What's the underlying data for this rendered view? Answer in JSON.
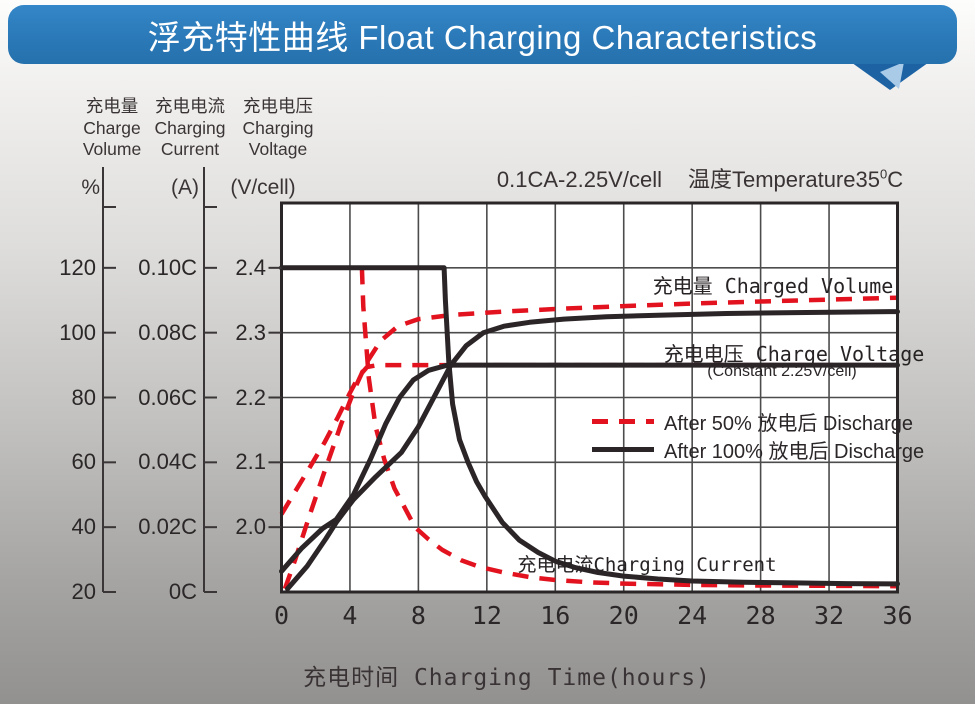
{
  "header": {
    "title": "浮充特性曲线 Float Charging Characteristics"
  },
  "axis_headers": [
    {
      "zh": "充电量",
      "en_line1": "Charge",
      "en_line2": "Volume",
      "unit": "%"
    },
    {
      "zh": "充电电流",
      "en_line1": "Charging",
      "en_line2": "Current",
      "unit": "(A)"
    },
    {
      "zh": "充电电压",
      "en_line1": "Charging",
      "en_line2": "Voltage",
      "unit": "(V/cell)"
    }
  ],
  "condition": {
    "rating": "0.1CA-2.25V/cell",
    "temperature_prefix": "温度Temperature35",
    "temperature_sup": "0",
    "temperature_unit": "C"
  },
  "x_axis_title": "充电时间 Charging Time(hours)",
  "colors": {
    "banner_blue": "#2b79b8",
    "banner_tail_dark": "#1d63a4",
    "banner_tail_light": "#a9cbe8",
    "curve_red": "#e2131f",
    "curve_black": "#2b2527",
    "grid": "#4c4c4c",
    "plot_border": "#2a2526",
    "axis_line": "#3a3537"
  },
  "chart_data": {
    "type": "line",
    "title": "浮充特性曲线 Float Charging Characteristics",
    "condition": "0.1CA-2.25V/cell  温度Temperature35°C",
    "xlabel": "充电时间 Charging Time(hours)",
    "x_axis": {
      "min": 0,
      "max": 36,
      "grid": true,
      "ticks": [
        {
          "label": "0",
          "value": 0
        },
        {
          "label": "4",
          "value": 4
        },
        {
          "label": "8",
          "value": 8
        },
        {
          "label": "12",
          "value": 12
        },
        {
          "label": "16",
          "value": 16
        },
        {
          "label": "20",
          "value": 20
        },
        {
          "label": "24",
          "value": 24
        },
        {
          "label": "28",
          "value": 28
        },
        {
          "label": "32",
          "value": 32
        },
        {
          "label": "36",
          "value": 36
        }
      ]
    },
    "y_axes": {
      "volume": {
        "label": "充电量 Charge Volume",
        "unit": "%",
        "min": 20,
        "max": 140,
        "ticks": [
          {
            "label": "120",
            "value": 120
          },
          {
            "label": "100",
            "value": 100
          },
          {
            "label": "80",
            "value": 80
          },
          {
            "label": "60",
            "value": 60
          },
          {
            "label": "40",
            "value": 40
          },
          {
            "label": "20",
            "value": 20
          }
        ]
      },
      "current": {
        "label": "充电电流 Charging Current",
        "unit": "(A)",
        "min": 0,
        "max": 0.12,
        "ticks": [
          {
            "label": "0.10C",
            "value": 0.1
          },
          {
            "label": "0.08C",
            "value": 0.08
          },
          {
            "label": "0.06C",
            "value": 0.06
          },
          {
            "label": "0.04C",
            "value": 0.04
          },
          {
            "label": "0.02C",
            "value": 0.02
          },
          {
            "label": "0C",
            "value": 0
          }
        ]
      },
      "voltage": {
        "label": "充电电压 Charging Voltage",
        "unit": "(V/cell)",
        "min": 1.9,
        "max": 2.5,
        "ticks": [
          {
            "label": "2.4",
            "value": 2.4
          },
          {
            "label": "2.3",
            "value": 2.3
          },
          {
            "label": "2.2",
            "value": 2.2
          },
          {
            "label": "2.1",
            "value": 2.1
          },
          {
            "label": "2.0",
            "value": 2.0
          }
        ]
      }
    },
    "annotations": {
      "charged_volume": "充电量 Charged Volume",
      "charge_voltage": "充电电压 Charge Voltage",
      "charge_voltage_sub": "(Constant 2.25V/cell)",
      "charging_current": "充电电流Charging Current"
    },
    "legend": [
      {
        "label": "After 50% 放电后 Discharge",
        "style": "dashed",
        "color": "#e2131f"
      },
      {
        "label": "After 100% 放电后 Discharge",
        "style": "solid",
        "color": "#2b2527"
      }
    ],
    "series": [
      {
        "name": "charging-current-after-50-discharge",
        "axis": "current",
        "color": "#e2131f",
        "dash": true,
        "points": [
          [
            0,
            0.1
          ],
          [
            4.7,
            0.1
          ],
          [
            4.78,
            0.088
          ],
          [
            5.1,
            0.066
          ],
          [
            5.5,
            0.051
          ],
          [
            6,
            0.041
          ],
          [
            6.6,
            0.032
          ],
          [
            7.2,
            0.026
          ],
          [
            7.8,
            0.02
          ],
          [
            8.6,
            0.0162
          ],
          [
            9.4,
            0.013
          ],
          [
            10.5,
            0.0098
          ],
          [
            11.6,
            0.0077
          ],
          [
            13,
            0.006
          ],
          [
            14.5,
            0.0046
          ],
          [
            16,
            0.0037
          ],
          [
            18,
            0.003
          ],
          [
            20,
            0.0026
          ],
          [
            24,
            0.0022
          ],
          [
            28,
            0.002
          ],
          [
            32,
            0.0019
          ],
          [
            36,
            0.0018
          ]
        ]
      },
      {
        "name": "charged-volume-after-50-discharge",
        "axis": "volume",
        "color": "#e2131f",
        "dash": true,
        "points": [
          [
            0.2,
            21
          ],
          [
            0.8,
            30
          ],
          [
            1.6,
            43
          ],
          [
            2.5,
            57
          ],
          [
            3.5,
            72
          ],
          [
            4.3,
            83
          ],
          [
            5,
            91
          ],
          [
            5.8,
            97.5
          ],
          [
            6.8,
            102
          ],
          [
            8,
            104.2
          ],
          [
            10,
            105.5
          ],
          [
            13,
            106.5
          ],
          [
            16,
            107.3
          ],
          [
            20,
            108.2
          ],
          [
            24,
            109
          ],
          [
            28,
            109.6
          ],
          [
            32,
            110.2
          ],
          [
            36,
            110.8
          ]
        ]
      },
      {
        "name": "charge-voltage-after-50-discharge",
        "axis": "voltage",
        "color": "#e2131f",
        "dash": true,
        "points": [
          [
            0,
            2.02
          ],
          [
            0.8,
            2.055
          ],
          [
            1.6,
            2.09
          ],
          [
            2.5,
            2.13
          ],
          [
            3.3,
            2.17
          ],
          [
            4,
            2.207
          ],
          [
            4.5,
            2.232
          ],
          [
            5,
            2.247
          ],
          [
            5.6,
            2.25
          ],
          [
            36,
            2.25
          ]
        ]
      },
      {
        "name": "charge-voltage-after-100-discharge",
        "axis": "voltage",
        "color": "#2b2527",
        "dash": false,
        "points": [
          [
            0,
            1.932
          ],
          [
            1.2,
            1.968
          ],
          [
            2.4,
            1.998
          ],
          [
            3.2,
            2.012
          ],
          [
            4.2,
            2.05
          ],
          [
            5.2,
            2.105
          ],
          [
            6.1,
            2.16
          ],
          [
            6.9,
            2.2
          ],
          [
            7.7,
            2.227
          ],
          [
            8.6,
            2.242
          ],
          [
            9.7,
            2.25
          ],
          [
            36,
            2.25
          ]
        ]
      },
      {
        "name": "charged-volume-after-100-discharge",
        "axis": "volume",
        "color": "#2b2527",
        "dash": false,
        "points": [
          [
            0.35,
            21
          ],
          [
            1.5,
            28
          ],
          [
            2.6,
            36.5
          ],
          [
            3.2,
            41.5
          ],
          [
            4.2,
            48.5
          ],
          [
            5.5,
            55.5
          ],
          [
            7,
            63
          ],
          [
            8,
            71
          ],
          [
            9,
            81
          ],
          [
            9.9,
            90
          ],
          [
            10.8,
            96
          ],
          [
            11.8,
            100
          ],
          [
            13,
            102
          ],
          [
            14.5,
            103.2
          ],
          [
            16.5,
            104.2
          ],
          [
            19,
            104.9
          ],
          [
            22,
            105.4
          ],
          [
            26,
            105.9
          ],
          [
            30,
            106.2
          ],
          [
            36,
            106.5
          ]
        ]
      },
      {
        "name": "charging-current-after-100-discharge",
        "axis": "current",
        "color": "#2b2527",
        "dash": false,
        "points": [
          [
            0,
            0.1
          ],
          [
            9.5,
            0.1
          ],
          [
            9.58,
            0.09
          ],
          [
            9.78,
            0.071
          ],
          [
            10,
            0.058
          ],
          [
            10.4,
            0.047
          ],
          [
            10.9,
            0.04
          ],
          [
            11.4,
            0.034
          ],
          [
            11.9,
            0.0295
          ],
          [
            12.9,
            0.0215
          ],
          [
            13.9,
            0.016
          ],
          [
            15,
            0.0122
          ],
          [
            16,
            0.0095
          ],
          [
            17.2,
            0.0075
          ],
          [
            18.5,
            0.006
          ],
          [
            20,
            0.0049
          ],
          [
            22,
            0.004
          ],
          [
            24,
            0.0034
          ],
          [
            27,
            0.003
          ],
          [
            30,
            0.0028
          ],
          [
            33,
            0.0026
          ],
          [
            36,
            0.0025
          ]
        ]
      }
    ]
  }
}
